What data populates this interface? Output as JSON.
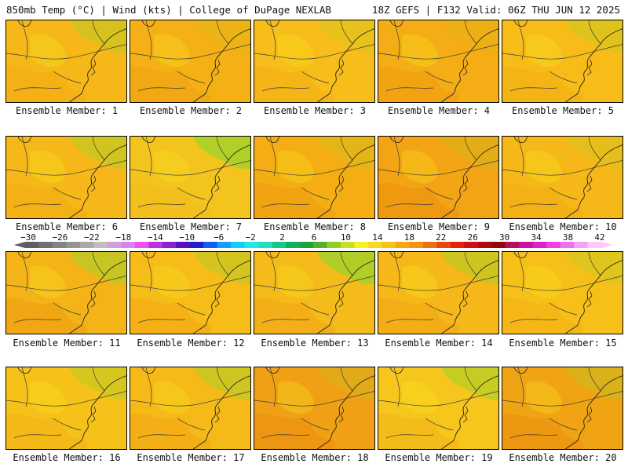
{
  "header": {
    "left": "850mb Temp (°C) | Wind (kts) | College of DuPage NEXLAB",
    "right": "18Z GEFS | F132 Valid: 06Z THU JUN 12 2025"
  },
  "panels": [
    {
      "label": "Ensemble Member: 1",
      "base": "#f6b818",
      "cool": 0.4,
      "warm": 0.2
    },
    {
      "label": "Ensemble Member: 2",
      "base": "#f4b014",
      "cool": 0.1,
      "warm": 0.3
    },
    {
      "label": "Ensemble Member: 3",
      "base": "#f7bd1a",
      "cool": 0.2,
      "warm": 0.2
    },
    {
      "label": "Ensemble Member: 4",
      "base": "#f4ad14",
      "cool": 0.1,
      "warm": 0.4
    },
    {
      "label": "Ensemble Member: 5",
      "base": "#f7bc18",
      "cool": 0.3,
      "warm": 0.2
    },
    {
      "label": "Ensemble Member: 6",
      "base": "#f6b818",
      "cool": 0.5,
      "warm": 0.2
    },
    {
      "label": "Ensemble Member: 7",
      "base": "#f3c41e",
      "cool": 0.9,
      "warm": 0.1
    },
    {
      "label": "Ensemble Member: 8",
      "base": "#f4ae14",
      "cool": 0.2,
      "warm": 0.4
    },
    {
      "label": "Ensemble Member: 9",
      "base": "#f2a414",
      "cool": 0.2,
      "warm": 0.7
    },
    {
      "label": "Ensemble Member: 10",
      "base": "#f6b818",
      "cool": 0.2,
      "warm": 0.2
    },
    {
      "label": "Ensemble Member: 11",
      "base": "#f4b418",
      "cool": 0.6,
      "warm": 0.4
    },
    {
      "label": "Ensemble Member: 12",
      "base": "#f6bc18",
      "cool": 0.4,
      "warm": 0.3
    },
    {
      "label": "Ensemble Member: 13",
      "base": "#f5bb1a",
      "cool": 0.9,
      "warm": 0.3
    },
    {
      "label": "Ensemble Member: 14",
      "base": "#f5b818",
      "cool": 0.5,
      "warm": 0.3
    },
    {
      "label": "Ensemble Member: 15",
      "base": "#f7c018",
      "cool": 0.3,
      "warm": 0.2
    },
    {
      "label": "Ensemble Member: 16",
      "base": "#f6c21a",
      "cool": 0.4,
      "warm": 0.2
    },
    {
      "label": "Ensemble Member: 17",
      "base": "#f5ba18",
      "cool": 0.5,
      "warm": 0.3
    },
    {
      "label": "Ensemble Member: 18",
      "base": "#f0a014",
      "cool": 0.2,
      "warm": 0.8
    },
    {
      "label": "Ensemble Member: 19",
      "base": "#f6c61c",
      "cool": 0.6,
      "warm": 0.2
    },
    {
      "label": "Ensemble Member: 20",
      "base": "#f0a414",
      "cool": 0.3,
      "warm": 0.8
    }
  ],
  "colorbar": {
    "labels": [
      "−30",
      "−26",
      "−22",
      "−18",
      "−14",
      "−10",
      "−6",
      "−2",
      "2",
      "6",
      "10",
      "14",
      "18",
      "22",
      "26",
      "30",
      "34",
      "38",
      "42"
    ],
    "colors": [
      "#5f5f5f",
      "#707070",
      "#828282",
      "#949494",
      "#a8a8a8",
      "#bfbfbf",
      "#d0a0e0",
      "#e080f0",
      "#f050f0",
      "#c030e0",
      "#8a20d0",
      "#5a10c0",
      "#2020c8",
      "#1060f0",
      "#10a0f8",
      "#10d0f8",
      "#20e8e8",
      "#20e0c0",
      "#10c890",
      "#10b060",
      "#20a040",
      "#50b030",
      "#90d020",
      "#c8e020",
      "#f8f020",
      "#f8d820",
      "#f8c018",
      "#f8a810",
      "#f89010",
      "#f07010",
      "#e84810",
      "#e82010",
      "#d01010",
      "#b00810",
      "#900808",
      "#b01060",
      "#d010a0",
      "#e020c8",
      "#f040e0",
      "#f070f0",
      "#f8a0f8",
      "#ffc8ff"
    ]
  }
}
